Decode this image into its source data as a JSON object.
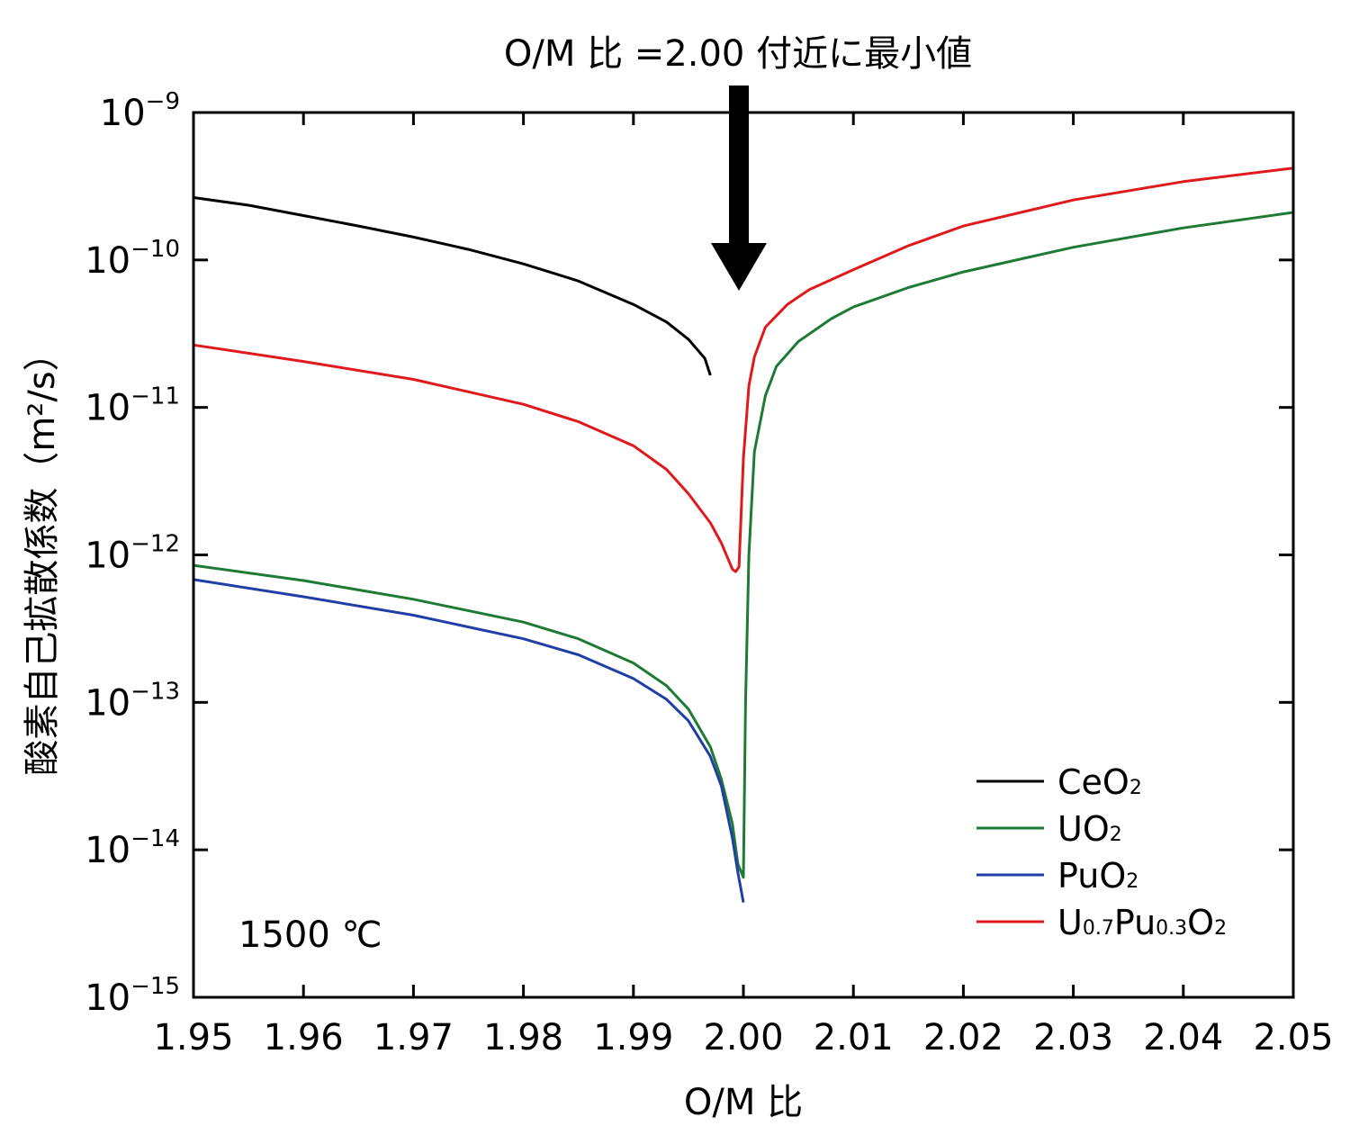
{
  "chart_data": {
    "type": "line",
    "title": "O/M 比 =2.00 付近に最小値",
    "xlabel": "O/M 比",
    "ylabel": "酸素自己拡散係数（m²/s）",
    "xlim": [
      1.95,
      2.05
    ],
    "ylim": [
      1e-15,
      1e-09
    ],
    "y_scale": "log",
    "x_ticks": [
      "1.95",
      "1.96",
      "1.97",
      "1.98",
      "1.99",
      "2.00",
      "2.01",
      "2.02",
      "2.03",
      "2.04",
      "2.05"
    ],
    "y_ticks": [
      {
        "base": "10",
        "exp": "−9"
      },
      {
        "base": "10",
        "exp": "−10"
      },
      {
        "base": "10",
        "exp": "−11"
      },
      {
        "base": "10",
        "exp": "−12"
      },
      {
        "base": "10",
        "exp": "−13"
      },
      {
        "base": "10",
        "exp": "−14"
      },
      {
        "base": "10",
        "exp": "−15"
      }
    ],
    "annotation": "1500 ℃",
    "arrow_at_x": 2.0,
    "legend_position": "bottom-right",
    "series": [
      {
        "name": "CeO2",
        "label_parts": [
          {
            "t": "CeO"
          },
          {
            "t": "2",
            "sub": true
          }
        ],
        "color": "#000000",
        "x": [
          1.95,
          1.955,
          1.96,
          1.965,
          1.97,
          1.975,
          1.98,
          1.985,
          1.99,
          1.993,
          1.995,
          1.9965,
          1.997
        ],
        "y": [
          2.65e-10,
          2.35e-10,
          2e-10,
          1.7e-10,
          1.43e-10,
          1.18e-10,
          9.4e-11,
          7.2e-11,
          5e-11,
          3.8e-11,
          2.9e-11,
          2.15e-11,
          1.65e-11
        ]
      },
      {
        "name": "UO2",
        "label_parts": [
          {
            "t": "UO"
          },
          {
            "t": "2",
            "sub": true
          }
        ],
        "color": "#1e7a35",
        "x": [
          1.95,
          1.96,
          1.97,
          1.98,
          1.985,
          1.99,
          1.993,
          1.995,
          1.997,
          1.998,
          1.999,
          1.9995,
          2.0,
          2.0002,
          2.0005,
          2.001,
          2.002,
          2.003,
          2.005,
          2.008,
          2.01,
          2.015,
          2.02,
          2.03,
          2.04,
          2.05
        ],
        "y": [
          8.5e-13,
          6.7e-13,
          5e-13,
          3.5e-13,
          2.7e-13,
          1.85e-13,
          1.3e-13,
          9e-14,
          5e-14,
          3e-14,
          1.5e-14,
          8e-15,
          6.5e-15,
          1e-13,
          1e-12,
          5e-12,
          1.2e-11,
          1.9e-11,
          2.8e-11,
          4e-11,
          4.8e-11,
          6.5e-11,
          8.3e-11,
          1.22e-10,
          1.65e-10,
          2.1e-10
        ]
      },
      {
        "name": "PuO2",
        "label_parts": [
          {
            "t": "PuO"
          },
          {
            "t": "2",
            "sub": true
          }
        ],
        "color": "#1f3fa6",
        "x": [
          1.95,
          1.96,
          1.97,
          1.98,
          1.985,
          1.99,
          1.993,
          1.995,
          1.997,
          1.998,
          1.999,
          1.9995,
          2.0
        ],
        "y": [
          6.8e-13,
          5.2e-13,
          3.9e-13,
          2.7e-13,
          2.1e-13,
          1.45e-13,
          1.05e-13,
          7.5e-14,
          4.3e-14,
          2.7e-14,
          1.2e-14,
          7e-15,
          4.4e-15
        ]
      },
      {
        "name": "U0.7Pu0.3O2",
        "label_parts": [
          {
            "t": "U"
          },
          {
            "t": "0.7",
            "sub": true
          },
          {
            "t": "Pu"
          },
          {
            "t": "0.3",
            "sub": true
          },
          {
            "t": "O"
          },
          {
            "t": "2",
            "sub": true
          }
        ],
        "color": "#e0191c",
        "x": [
          1.95,
          1.96,
          1.97,
          1.98,
          1.985,
          1.99,
          1.993,
          1.995,
          1.997,
          1.998,
          1.9985,
          1.999,
          1.9993,
          1.9996,
          2.0,
          2.0005,
          2.001,
          2.002,
          2.004,
          2.006,
          2.01,
          2.015,
          2.02,
          2.03,
          2.04,
          2.05
        ],
        "y": [
          2.65e-11,
          2.05e-11,
          1.55e-11,
          1.05e-11,
          8e-12,
          5.5e-12,
          3.8e-12,
          2.6e-12,
          1.65e-12,
          1.2e-12,
          9.8e-13,
          8e-13,
          7.7e-13,
          8.3e-13,
          4.5e-12,
          1.4e-11,
          2.2e-11,
          3.5e-11,
          5e-11,
          6.3e-11,
          8.6e-11,
          1.25e-10,
          1.7e-10,
          2.55e-10,
          3.4e-10,
          4.2e-10
        ]
      }
    ]
  }
}
